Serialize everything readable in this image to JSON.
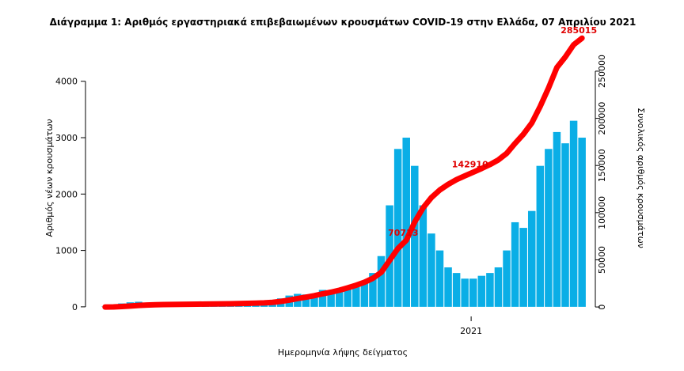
{
  "chart_data": {
    "type": "bar",
    "title": "Διάγραμμα 1: Αριθμός εργαστηριακά επιβεβαιωμένων κρουσμάτων COVID-19 στην Ελλάδα, 07 Απριλίου 2021",
    "xlabel": "Ημερομηνία λήψης δείγματος",
    "ylabel": "Αριθμός νέων κρουσμάτων",
    "y2label": "Συνολικός αριθμός κρουσμάτων",
    "x": [
      2020.16,
      2020.1792,
      2020.1984,
      2020.2176,
      2020.2368,
      2020.256,
      2020.2752,
      2020.2944,
      2020.3136,
      2020.3328,
      2020.352,
      2020.3712,
      2020.3904,
      2020.4096,
      2020.4288,
      2020.448,
      2020.4672,
      2020.4864,
      2020.5056,
      2020.5248,
      2020.544,
      2020.5632,
      2020.5824,
      2020.6016,
      2020.6208,
      2020.64,
      2020.6592,
      2020.6784,
      2020.6976,
      2020.7168,
      2020.736,
      2020.7552,
      2020.7744,
      2020.7936,
      2020.8128,
      2020.832,
      2020.8512,
      2020.8704,
      2020.8896,
      2020.9088,
      2020.928,
      2020.9472,
      2020.9664,
      2020.9856,
      2021.0048,
      2021.024,
      2021.0432,
      2021.0624,
      2021.0816,
      2021.1008,
      2021.12,
      2021.1392,
      2021.1584,
      2021.1776,
      2021.1968,
      2021.216,
      2021.2352,
      2021.2544
    ],
    "xlim": [
      2020.115,
      2021.285
    ],
    "xticks": [
      2021
    ],
    "ylim": [
      -170,
      4810
    ],
    "yticks": [
      0,
      1000,
      2000,
      3000,
      4000
    ],
    "y2lim": [
      -10000,
      287700
    ],
    "y2ticks": [
      0,
      50000,
      100000,
      150000,
      200000,
      250000
    ],
    "series": [
      {
        "type": "bar",
        "color": "#0aaee6",
        "values": [
          5,
          20,
          60,
          80,
          90,
          70,
          40,
          20,
          15,
          15,
          10,
          15,
          20,
          20,
          25,
          20,
          30,
          40,
          40,
          50,
          80,
          150,
          200,
          230,
          220,
          230,
          300,
          250,
          300,
          350,
          400,
          450,
          600,
          900,
          1800,
          2800,
          3000,
          2500,
          1800,
          1300,
          1000,
          700,
          600,
          500,
          500,
          550,
          600,
          700,
          1000,
          1500,
          1400,
          1700,
          2500,
          2800,
          3100,
          2900,
          3300,
          3000
        ]
      },
      {
        "type": "line",
        "axis": "y2",
        "color": "#ff0000",
        "values": [
          3,
          100,
          500,
          1000,
          1600,
          2100,
          2400,
          2600,
          2700,
          2800,
          2900,
          3000,
          3100,
          3200,
          3300,
          3400,
          3600,
          3800,
          4100,
          4400,
          4900,
          5900,
          7300,
          8900,
          10400,
          12000,
          14000,
          15700,
          17800,
          20300,
          23100,
          26200,
          30400,
          36700,
          49300,
          62000,
          70713,
          90000,
          105000,
          116000,
          124000,
          130000,
          135000,
          139000,
          142910,
          146800,
          151000,
          155900,
          162900,
          173400,
          183200,
          195100,
          212600,
          232200,
          253900,
          265000,
          278000,
          285015
        ],
        "value_labels": [
          null,
          null,
          null,
          null,
          null,
          null,
          null,
          null,
          null,
          null,
          null,
          null,
          null,
          null,
          null,
          null,
          null,
          null,
          null,
          null,
          null,
          null,
          null,
          null,
          null,
          null,
          null,
          null,
          null,
          null,
          null,
          null,
          null,
          null,
          null,
          null,
          "70713",
          null,
          null,
          null,
          null,
          null,
          null,
          null,
          "142910",
          null,
          null,
          null,
          null,
          null,
          null,
          null,
          null,
          null,
          null,
          null,
          null,
          "285015"
        ]
      }
    ]
  }
}
